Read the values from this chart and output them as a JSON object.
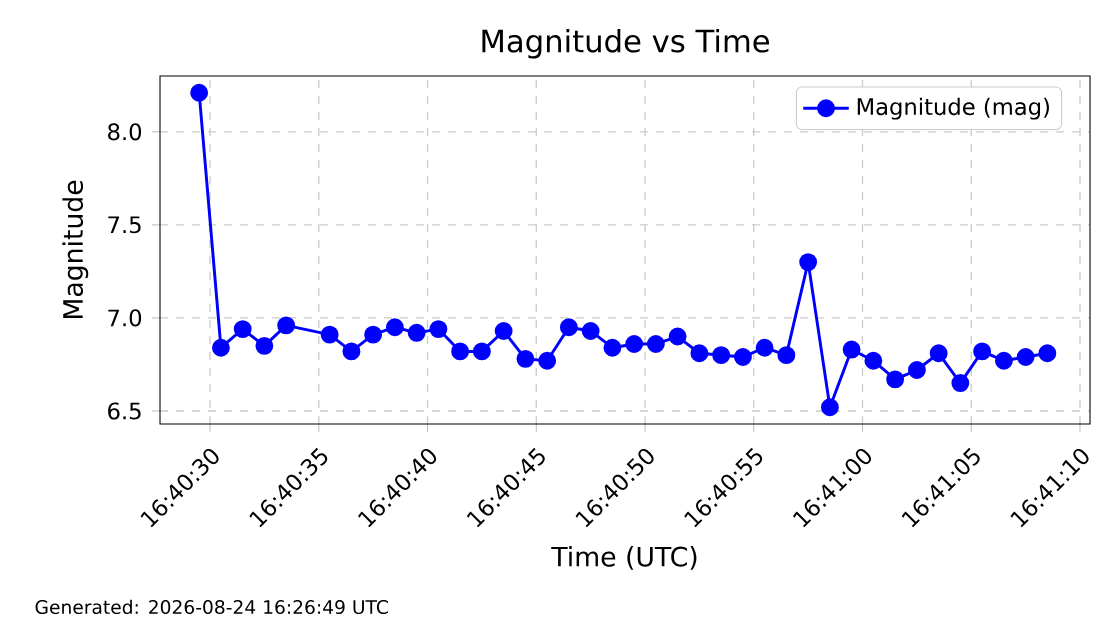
{
  "chart_data": {
    "type": "line",
    "title": "Magnitude vs Time",
    "xlabel": "Time (UTC)",
    "ylabel": "Magnitude",
    "annotations": [
      "Generated: 2026-08-24 16:26:49 UTC"
    ],
    "x": [
      16.674861,
      16.675139,
      16.675417,
      16.675694,
      16.675972,
      16.676528,
      16.676806,
      16.677083,
      16.677361,
      16.677639,
      16.677917,
      16.678194,
      16.678472,
      16.67875,
      16.679028,
      16.679306,
      16.679583,
      16.679861,
      16.680139,
      16.680417,
      16.680694,
      16.680972,
      16.68125,
      16.681528,
      16.681806,
      16.682083,
      16.682361,
      16.682639,
      16.682917,
      16.683194,
      16.683472,
      16.68375,
      16.684028,
      16.684306,
      16.684583,
      16.684861,
      16.685139,
      16.685417,
      16.685694
    ],
    "series": [
      {
        "name": "Magnitude (mag)",
        "color": "#0000ff",
        "values": [
          8.21,
          6.84,
          6.94,
          6.85,
          6.96,
          6.91,
          6.82,
          6.91,
          6.95,
          6.92,
          6.94,
          6.82,
          6.82,
          6.93,
          6.78,
          6.77,
          6.95,
          6.93,
          6.84,
          6.86,
          6.86,
          6.9,
          6.81,
          6.8,
          6.79,
          6.84,
          6.8,
          7.3,
          6.52,
          6.83,
          6.77,
          6.67,
          6.72,
          6.81,
          6.65,
          6.82,
          6.77,
          6.79,
          6.81
        ]
      }
    ],
    "xlim": [
      16.674361,
      16.686239
    ],
    "ylim": [
      6.43,
      8.3
    ],
    "xticks": [
      {
        "value": 16.675,
        "label": "16:40:30"
      },
      {
        "value": 16.676389,
        "label": "16:40:35"
      },
      {
        "value": 16.677778,
        "label": "16:40:40"
      },
      {
        "value": 16.679167,
        "label": "16:40:45"
      },
      {
        "value": 16.680556,
        "label": "16:40:50"
      },
      {
        "value": 16.681944,
        "label": "16:40:55"
      },
      {
        "value": 16.683333,
        "label": "16:41:00"
      },
      {
        "value": 16.684722,
        "label": "16:41:05"
      },
      {
        "value": 16.686111,
        "label": "16:41:10"
      }
    ],
    "yticks": [
      {
        "value": 6.5,
        "label": "6.5"
      },
      {
        "value": 7.0,
        "label": "7.0"
      },
      {
        "value": 7.5,
        "label": "7.5"
      },
      {
        "value": 8.0,
        "label": "8.0"
      }
    ],
    "grid": true,
    "legend": "top right",
    "marker": "circle",
    "line_style": "solid"
  }
}
